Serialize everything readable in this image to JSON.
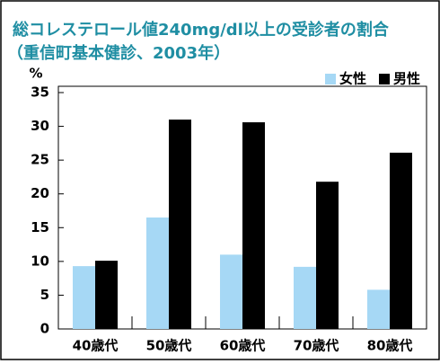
{
  "chart_data": {
    "type": "bar",
    "title": "総コレステロール値240mg/dl以上の受診者の割合",
    "subtitle": "（重信町基本健診、2003年）",
    "y_label": "%",
    "categories": [
      "40歳代",
      "50歳代",
      "60歳代",
      "70歳代",
      "80歳代"
    ],
    "series": [
      {
        "name": "女性",
        "color": "#a6d8f5",
        "values": [
          9.3,
          16.5,
          11,
          9.2,
          5.8
        ]
      },
      {
        "name": "男性",
        "color": "#000000",
        "values": [
          10.1,
          31,
          30.6,
          21.8,
          26.1
        ]
      }
    ],
    "ylim": [
      0,
      35
    ],
    "yticks": [
      0,
      5,
      10,
      15,
      20,
      25,
      30,
      35
    ],
    "title_color": "#1f8ea3",
    "legend": "top-right",
    "grid": false
  }
}
